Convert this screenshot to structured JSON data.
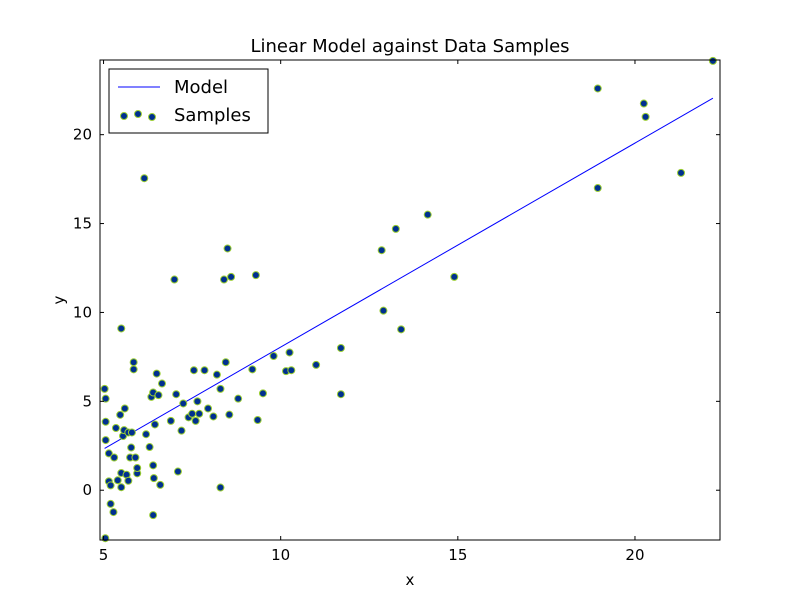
{
  "chart_data": {
    "type": "scatter",
    "title": "Linear Model against Data Samples",
    "xlabel": "x",
    "ylabel": "y",
    "xlim": [
      4.9,
      22.4
    ],
    "ylim": [
      -2.8,
      24.2
    ],
    "xticks": [
      5,
      10,
      15,
      20
    ],
    "yticks": [
      0,
      5,
      10,
      15,
      20
    ],
    "grid": false,
    "legend_position": "top-left",
    "series": [
      {
        "name": "Model",
        "kind": "line",
        "color": "#0000ff",
        "x": [
          5.03,
          22.2
        ],
        "y": [
          2.35,
          22.05
        ]
      },
      {
        "name": "Samples",
        "kind": "scatter",
        "color": "#00308f",
        "edge_color": "#9acd32",
        "points": [
          [
            5.03,
            5.7
          ],
          [
            5.06,
            5.15
          ],
          [
            5.06,
            3.85
          ],
          [
            5.06,
            2.82
          ],
          [
            5.05,
            -2.7
          ],
          [
            5.15,
            2.07
          ],
          [
            5.15,
            0.5
          ],
          [
            5.2,
            0.27
          ],
          [
            5.2,
            -0.77
          ],
          [
            5.28,
            -1.23
          ],
          [
            5.3,
            1.84
          ],
          [
            5.35,
            3.5
          ],
          [
            5.4,
            0.56
          ],
          [
            5.47,
            4.24
          ],
          [
            5.5,
            0.97
          ],
          [
            5.5,
            9.1
          ],
          [
            5.5,
            0.17
          ],
          [
            5.55,
            3.05
          ],
          [
            5.58,
            3.38
          ],
          [
            5.6,
            4.6
          ],
          [
            5.65,
            0.87
          ],
          [
            5.7,
            0.53
          ],
          [
            5.7,
            3.25
          ],
          [
            5.75,
            1.84
          ],
          [
            5.78,
            2.4
          ],
          [
            5.8,
            3.25
          ],
          [
            5.85,
            7.2
          ],
          [
            5.85,
            6.8
          ],
          [
            5.9,
            1.84
          ],
          [
            5.95,
            0.95
          ],
          [
            5.95,
            1.25
          ],
          [
            6.15,
            17.55
          ],
          [
            6.2,
            3.15
          ],
          [
            6.3,
            2.43
          ],
          [
            6.35,
            5.25
          ],
          [
            6.4,
            5.5
          ],
          [
            6.4,
            1.4
          ],
          [
            6.42,
            0.68
          ],
          [
            6.4,
            -1.4
          ],
          [
            6.45,
            3.7
          ],
          [
            6.5,
            6.56
          ],
          [
            6.55,
            5.35
          ],
          [
            6.6,
            0.3
          ],
          [
            6.65,
            6.0
          ],
          [
            6.9,
            3.9
          ],
          [
            7.0,
            11.85
          ],
          [
            7.05,
            5.4
          ],
          [
            7.1,
            1.05
          ],
          [
            7.2,
            3.35
          ],
          [
            7.25,
            4.88
          ],
          [
            7.4,
            4.1
          ],
          [
            7.5,
            4.3
          ],
          [
            7.55,
            6.75
          ],
          [
            7.6,
            3.9
          ],
          [
            7.65,
            5.0
          ],
          [
            7.7,
            4.3
          ],
          [
            7.85,
            6.75
          ],
          [
            7.95,
            4.6
          ],
          [
            8.1,
            4.15
          ],
          [
            8.2,
            6.5
          ],
          [
            8.3,
            0.15
          ],
          [
            8.3,
            5.7
          ],
          [
            8.4,
            11.85
          ],
          [
            8.45,
            7.2
          ],
          [
            8.5,
            13.6
          ],
          [
            8.55,
            4.25
          ],
          [
            8.6,
            12.0
          ],
          [
            8.8,
            5.15
          ],
          [
            9.2,
            6.8
          ],
          [
            9.3,
            12.1
          ],
          [
            9.35,
            3.95
          ],
          [
            9.5,
            5.45
          ],
          [
            9.8,
            7.55
          ],
          [
            10.15,
            6.7
          ],
          [
            10.25,
            7.75
          ],
          [
            10.3,
            6.75
          ],
          [
            11.0,
            7.05
          ],
          [
            11.7,
            5.4
          ],
          [
            11.7,
            8.0
          ],
          [
            12.85,
            13.5
          ],
          [
            12.9,
            10.1
          ],
          [
            13.25,
            14.7
          ],
          [
            13.4,
            9.05
          ],
          [
            14.15,
            15.5
          ],
          [
            14.9,
            12.0
          ],
          [
            18.95,
            22.6
          ],
          [
            18.95,
            17.0
          ],
          [
            20.25,
            21.75
          ],
          [
            20.3,
            21.0
          ],
          [
            21.3,
            17.85
          ],
          [
            22.2,
            24.15
          ]
        ]
      }
    ]
  }
}
